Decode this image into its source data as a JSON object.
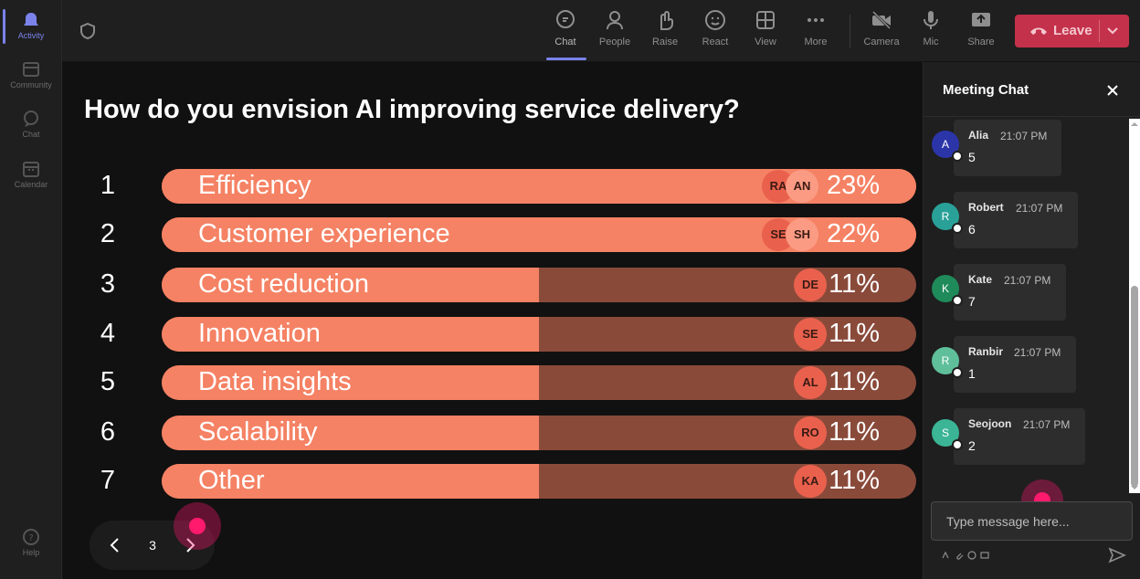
{
  "rail": {
    "items": [
      {
        "label": "Activity",
        "icon": "bell-icon",
        "active": true
      },
      {
        "label": "Community",
        "icon": "community-icon",
        "active": false
      },
      {
        "label": "Chat",
        "icon": "chat-icon",
        "active": false
      },
      {
        "label": "Calendar",
        "icon": "calendar-icon",
        "active": false
      },
      {
        "label": "Help",
        "icon": "help-icon",
        "active": false
      }
    ]
  },
  "toolbar": {
    "tools": [
      {
        "label": "Chat",
        "icon": "chat-icon",
        "active": true
      },
      {
        "label": "People",
        "icon": "people-icon",
        "active": false
      },
      {
        "label": "Raise",
        "icon": "hand-icon",
        "active": false
      },
      {
        "label": "React",
        "icon": "smiley-icon",
        "active": false
      },
      {
        "label": "View",
        "icon": "grid-icon",
        "active": false
      },
      {
        "label": "More",
        "icon": "more-icon",
        "active": false
      },
      {
        "label": "Camera",
        "icon": "camera-off-icon",
        "active": false
      },
      {
        "label": "Mic",
        "icon": "mic-icon",
        "active": false
      },
      {
        "label": "Share",
        "icon": "share-icon",
        "active": false
      }
    ],
    "leave_label": "Leave",
    "leave_color": "#c4314b"
  },
  "poll": {
    "question": "How do you envision AI improving service delivery?",
    "fill_color": "#f58264",
    "track_color": "#8a4a3a",
    "options": [
      {
        "num": "1",
        "label": "Efficiency",
        "pct": "23%",
        "fraction": 1.0,
        "avatars": [
          "RA",
          "AN"
        ]
      },
      {
        "num": "2",
        "label": "Customer experience",
        "pct": "22%",
        "fraction": 1.0,
        "avatars": [
          "SE",
          "SH"
        ]
      },
      {
        "num": "3",
        "label": "Cost reduction",
        "pct": "11%",
        "fraction": 0.5,
        "avatars": [
          "DE"
        ]
      },
      {
        "num": "4",
        "label": "Innovation",
        "pct": "11%",
        "fraction": 0.5,
        "avatars": [
          "SE"
        ]
      },
      {
        "num": "5",
        "label": "Data insights",
        "pct": "11%",
        "fraction": 0.5,
        "avatars": [
          "AL"
        ]
      },
      {
        "num": "6",
        "label": "Scalability",
        "pct": "11%",
        "fraction": 0.5,
        "avatars": [
          "RO"
        ]
      },
      {
        "num": "7",
        "label": "Other",
        "pct": "11%",
        "fraction": 0.5,
        "avatars": [
          "KA"
        ]
      }
    ],
    "pager": {
      "page": "3"
    }
  },
  "chat": {
    "title": "Meeting Chat",
    "messages": [
      {
        "initial": "A",
        "name": "Alia",
        "time": "21:07 PM",
        "text": "5",
        "color": "#2b35a8"
      },
      {
        "initial": "R",
        "name": "Robert",
        "time": "21:07 PM",
        "text": "6",
        "color": "#2aa198"
      },
      {
        "initial": "K",
        "name": "Kate",
        "time": "21:07 PM",
        "text": "7",
        "color": "#1f8a5a"
      },
      {
        "initial": "R",
        "name": "Ranbir",
        "time": "21:07 PM",
        "text": "1",
        "color": "#5fbf9a"
      },
      {
        "initial": "S",
        "name": "Seojoon",
        "time": "21:07 PM",
        "text": "2",
        "color": "#3bb596"
      }
    ],
    "input_placeholder": "Type message here..."
  }
}
